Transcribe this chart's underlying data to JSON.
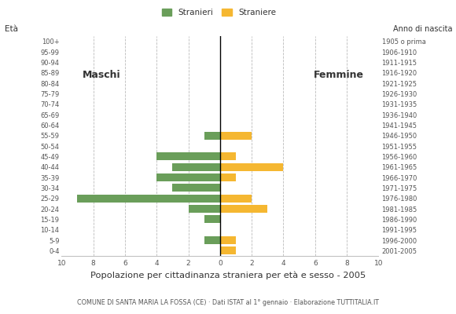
{
  "age_groups": [
    "0-4",
    "5-9",
    "10-14",
    "15-19",
    "20-24",
    "25-29",
    "30-34",
    "35-39",
    "40-44",
    "45-49",
    "50-54",
    "55-59",
    "60-64",
    "65-69",
    "70-74",
    "75-79",
    "80-84",
    "85-89",
    "90-94",
    "95-99",
    "100+"
  ],
  "birth_years": [
    "2001-2005",
    "1996-2000",
    "1991-1995",
    "1986-1990",
    "1981-1985",
    "1976-1980",
    "1971-1975",
    "1966-1970",
    "1961-1965",
    "1956-1960",
    "1951-1955",
    "1946-1950",
    "1941-1945",
    "1936-1940",
    "1931-1935",
    "1926-1930",
    "1921-1925",
    "1916-1920",
    "1911-1915",
    "1906-1910",
    "1905 o prima"
  ],
  "males": [
    0,
    1,
    0,
    1,
    2,
    9,
    3,
    4,
    3,
    4,
    0,
    1,
    0,
    0,
    0,
    0,
    0,
    0,
    0,
    0,
    0
  ],
  "females": [
    1,
    1,
    0,
    0,
    3,
    2,
    0,
    1,
    4,
    1,
    0,
    2,
    0,
    0,
    0,
    0,
    0,
    0,
    0,
    0,
    0
  ],
  "male_color": "#6a9e5a",
  "female_color": "#f5b731",
  "title_main": "Popolazione per cittadinanza straniera per età e sesso - 2005",
  "title_sub": "COMUNE DI SANTA MARIA LA FOSSA (CE) · Dati ISTAT al 1° gennaio · Elaborazione TUTTITALIA.IT",
  "label_eta": "Età",
  "legend_male": "Stranieri",
  "legend_female": "Straniere",
  "label_maschi": "Maschi",
  "label_femmine": "Femmine",
  "label_anno": "Anno di nascita",
  "xlim": 10,
  "bar_height": 0.75,
  "background_color": "#ffffff",
  "grid_color": "#bbbbbb",
  "text_color": "#555555",
  "axis_label_color": "#333333"
}
